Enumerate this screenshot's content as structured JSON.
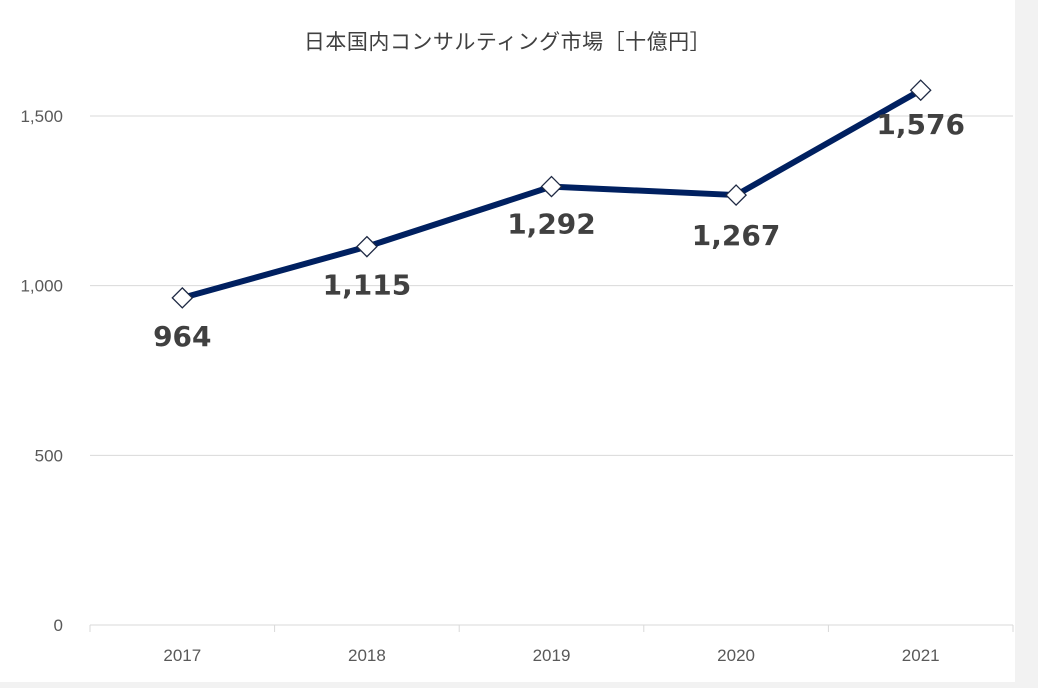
{
  "chart_data": {
    "type": "line",
    "title": "日本国内コンサルティング市場［十億円］",
    "xlabel": "",
    "ylabel": "",
    "categories": [
      "2017",
      "2018",
      "2019",
      "2020",
      "2021"
    ],
    "series": [
      {
        "name": "日本国内コンサルティング市場",
        "values": [
          964,
          1115,
          1292,
          1267,
          1576
        ],
        "color": "#002060"
      }
    ],
    "data_labels": [
      "964",
      "1,115",
      "1,292",
      "1,267",
      "1,576"
    ],
    "yticks": [
      "0",
      "500",
      "1,000",
      "1,500"
    ],
    "ylim": [
      0,
      1500
    ],
    "grid": true,
    "legend": "none",
    "marker": "diamond-open"
  },
  "colors": {
    "line": "#002060",
    "grid": "#d9d9d9",
    "text": "#595959",
    "label": "#404040"
  }
}
